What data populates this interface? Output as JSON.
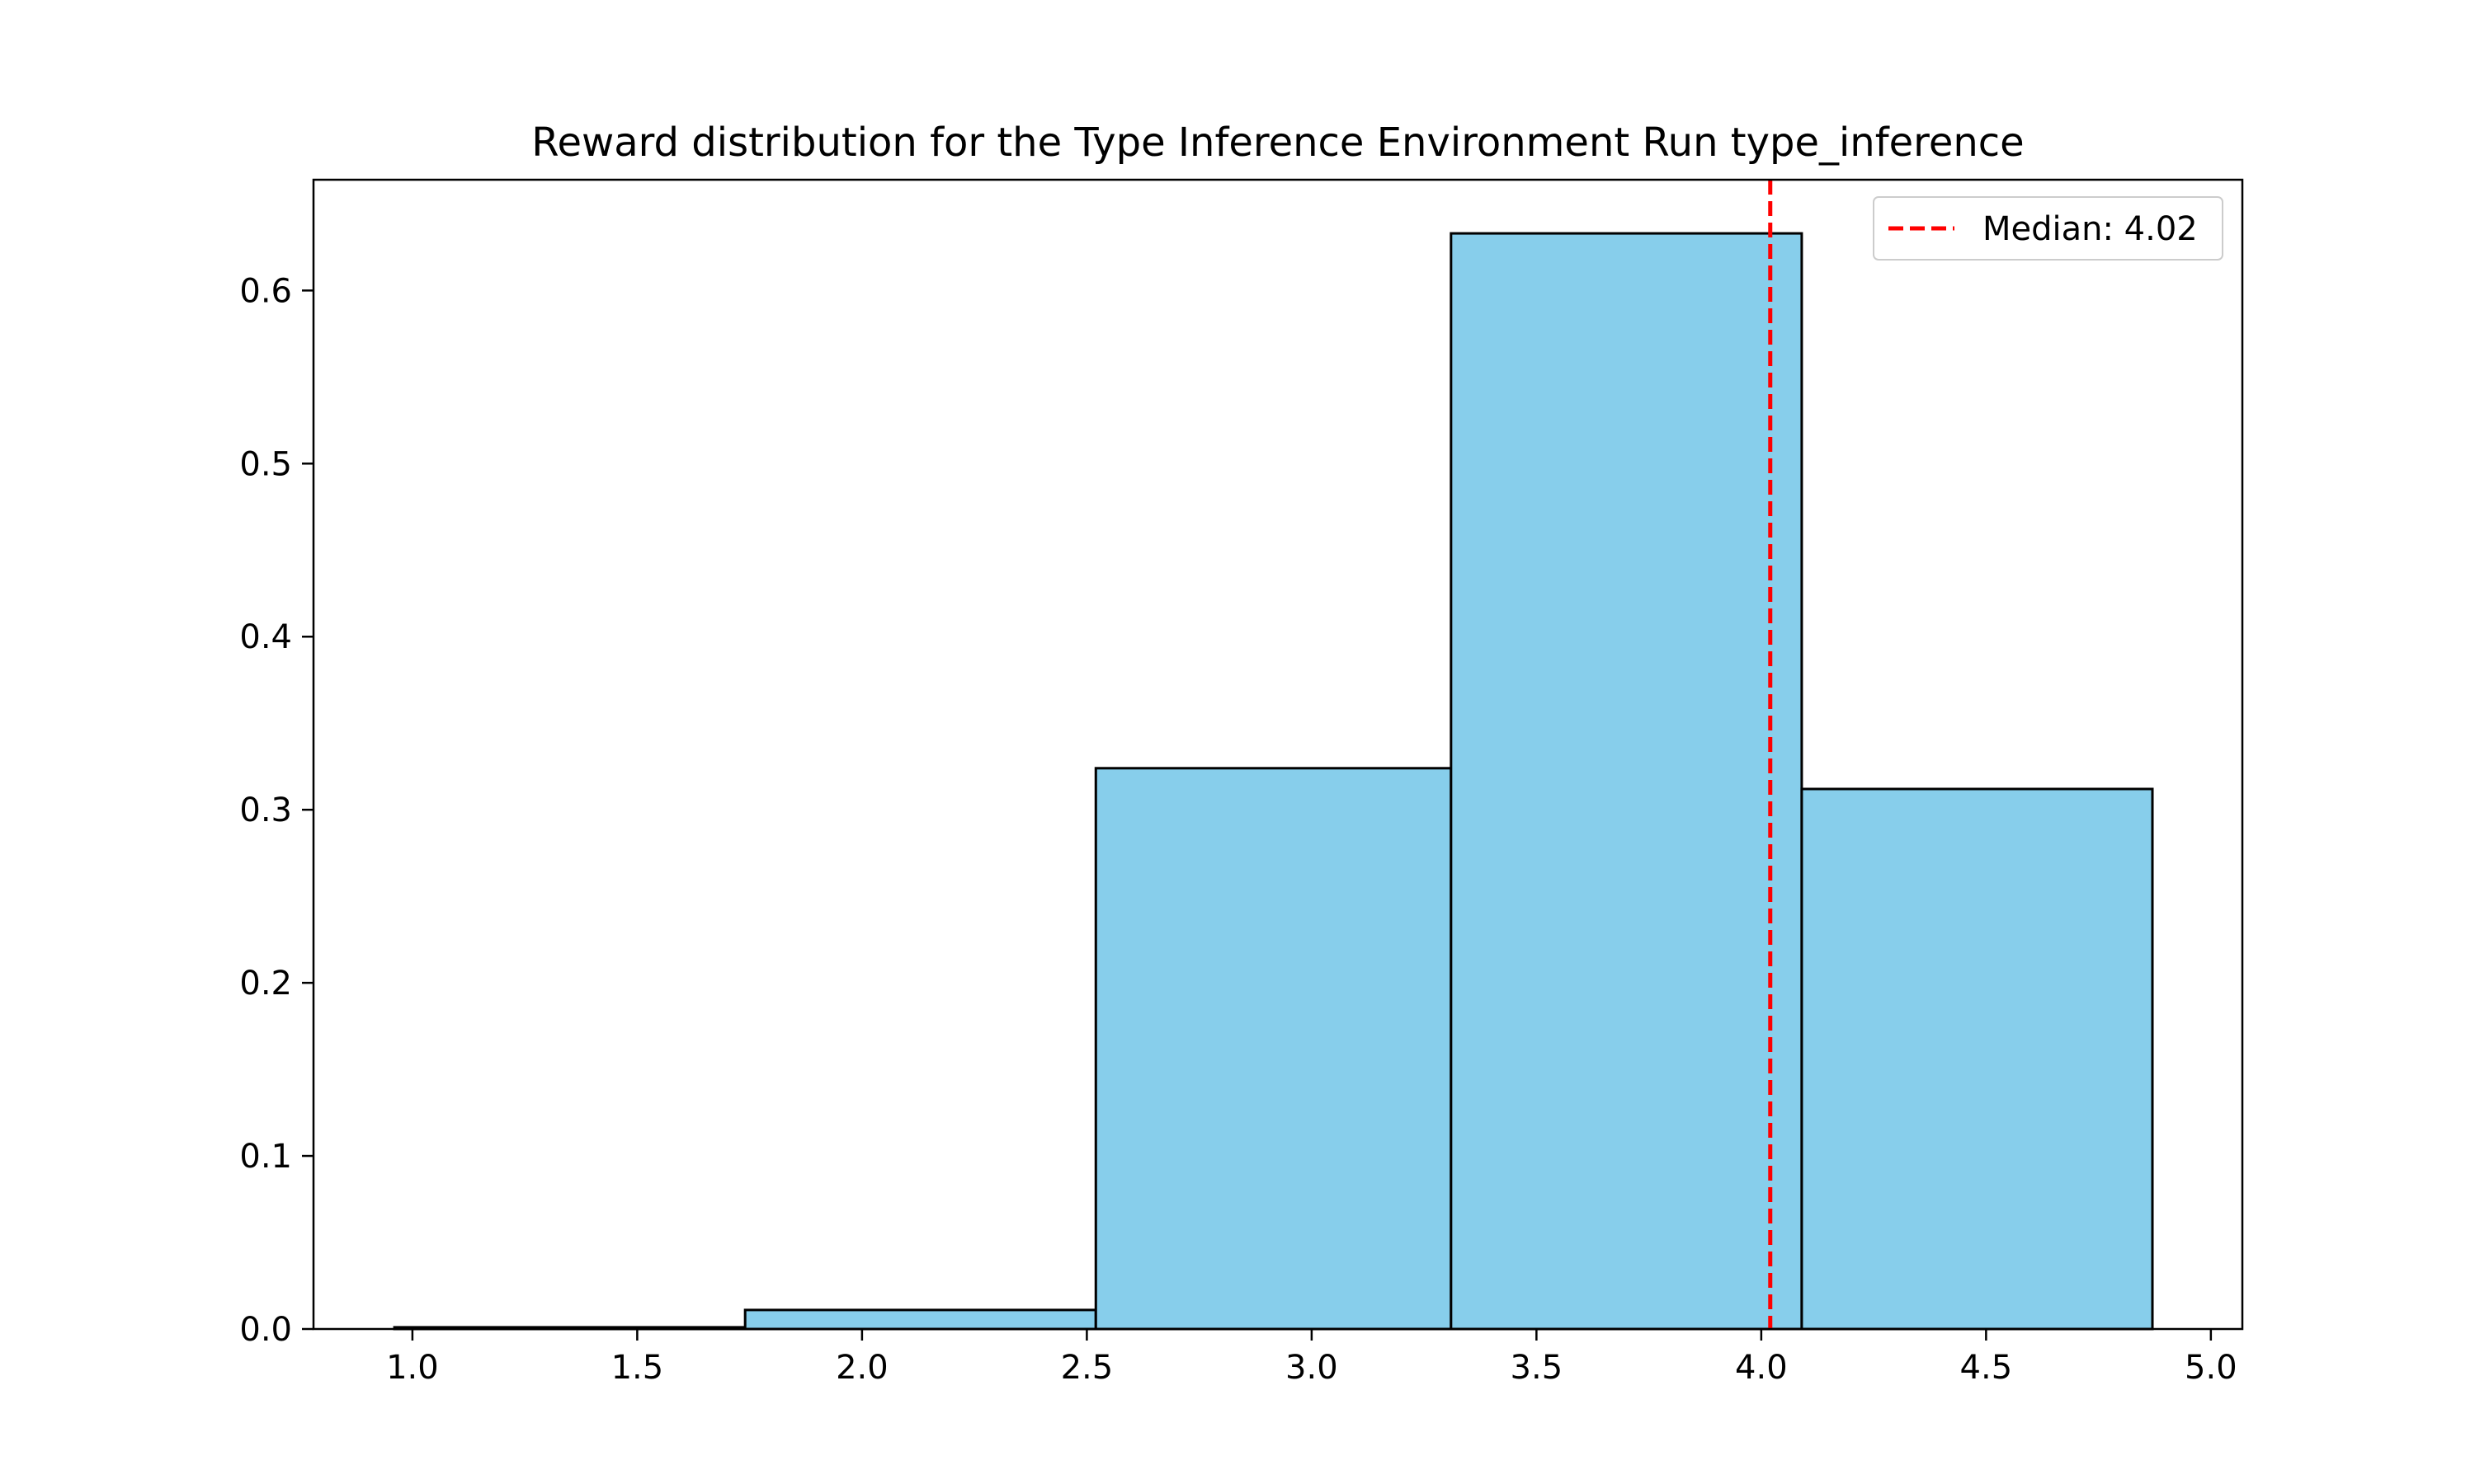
{
  "chart_data": {
    "type": "bar",
    "title": "Reward distribution for the Type Inference Environment Run type_inference",
    "xlabel": "",
    "ylabel": "",
    "xlim": [
      0.78,
      5.07
    ],
    "ylim": [
      0,
      0.664
    ],
    "x_ticks": [
      "1.0",
      "1.5",
      "2.0",
      "2.5",
      "3.0",
      "3.5",
      "4.0",
      "4.5",
      "5.0"
    ],
    "y_ticks": [
      "0.0",
      "0.1",
      "0.2",
      "0.3",
      "0.4",
      "0.5",
      "0.6"
    ],
    "bin_edges": [
      0.96,
      1.74,
      2.52,
      3.31,
      4.09,
      4.87
    ],
    "values": [
      0.001,
      0.011,
      0.324,
      0.633,
      0.312
    ],
    "bar_color": "#87CEEB",
    "edge_color": "#000000",
    "grid": false,
    "median": {
      "value": 4.02,
      "label": "Median: 4.02",
      "color": "#FF0000",
      "style": "dashed"
    },
    "legend_position": "top-right"
  }
}
